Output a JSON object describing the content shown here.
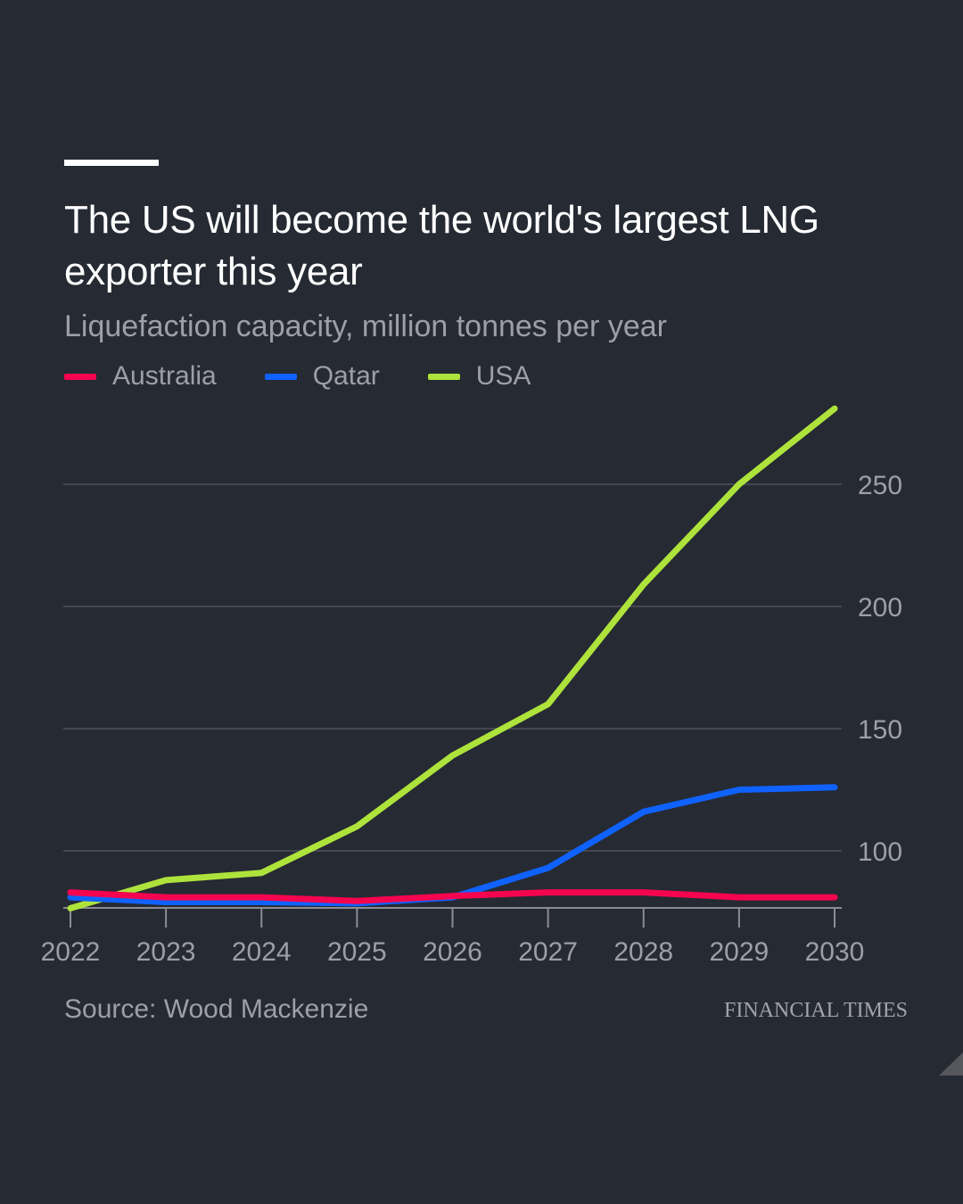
{
  "header": {
    "title": "The US will become the world's largest LNG exporter this year",
    "subtitle": "Liquefaction capacity, million tonnes per year"
  },
  "legend": [
    {
      "label": "Australia",
      "color": "#f5054f"
    },
    {
      "label": "Qatar",
      "color": "#0f62fe"
    },
    {
      "label": "USA",
      "color": "#aee33b"
    }
  ],
  "footer": {
    "source": "Source: Wood Mackenzie",
    "brand": "FINANCIAL TIMES"
  },
  "chart_data": {
    "type": "line",
    "title": "The US will become the world's largest LNG exporter this year",
    "subtitle": "Liquefaction capacity, million tonnes per year",
    "xlabel": "",
    "ylabel": "Liquefaction capacity, million tonnes per year",
    "x": [
      2022,
      2023,
      2024,
      2025,
      2026,
      2027,
      2028,
      2029,
      2030
    ],
    "x_tick_labels": [
      "2022",
      "2023",
      "2024",
      "2025",
      "2026",
      "2027",
      "2028",
      "2029",
      "2030"
    ],
    "y_ticks": [
      100,
      150,
      200,
      250
    ],
    "y_tick_labels": [
      "100",
      "150",
      "200",
      "250"
    ],
    "ylim": [
      76.5,
      285
    ],
    "y_axis_position": "right",
    "grid": true,
    "legend_position": "top-left",
    "series": [
      {
        "name": "Australia",
        "color": "#f5054f",
        "values": [
          83,
          81,
          81,
          79.5,
          81.5,
          83,
          83,
          81,
          81
        ]
      },
      {
        "name": "Qatar",
        "color": "#0f62fe",
        "values": [
          81,
          79,
          79,
          78.5,
          81,
          93,
          116,
          125,
          126
        ]
      },
      {
        "name": "USA",
        "color": "#aee33b",
        "values": [
          76.5,
          88,
          91,
          110,
          139,
          160,
          209,
          250,
          281
        ]
      }
    ]
  }
}
